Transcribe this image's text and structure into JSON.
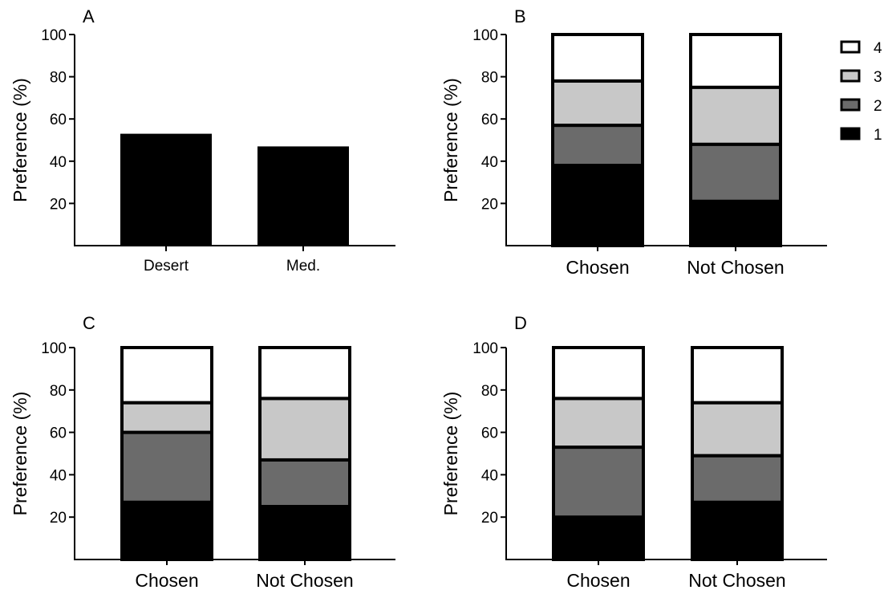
{
  "chart_data": [
    {
      "panel": "A",
      "type": "bar",
      "ylabel": "Preference (%)",
      "ylim": [
        0,
        100
      ],
      "yticks": [
        20,
        40,
        60,
        80,
        100
      ],
      "categories": [
        "Desert",
        "Med."
      ],
      "values": [
        53,
        47
      ],
      "colors": [
        "#000000",
        "#000000"
      ]
    },
    {
      "panel": "B",
      "type": "bar",
      "stacked": true,
      "ylabel": "Preference (%)",
      "ylim": [
        0,
        100
      ],
      "yticks": [
        20,
        40,
        60,
        80,
        100
      ],
      "categories": [
        "Chosen",
        "Not Chosen"
      ],
      "series": [
        {
          "name": "1",
          "values": [
            38,
            21
          ]
        },
        {
          "name": "2",
          "values": [
            19,
            27
          ]
        },
        {
          "name": "3",
          "values": [
            21,
            27
          ]
        },
        {
          "name": "4",
          "values": [
            22,
            25
          ]
        }
      ],
      "legend": "right"
    },
    {
      "panel": "C",
      "type": "bar",
      "stacked": true,
      "ylabel": "Preference (%)",
      "ylim": [
        0,
        100
      ],
      "yticks": [
        20,
        40,
        60,
        80,
        100
      ],
      "categories": [
        "Chosen",
        "Not Chosen"
      ],
      "series": [
        {
          "name": "1",
          "values": [
            27,
            25
          ]
        },
        {
          "name": "2",
          "values": [
            33,
            22
          ]
        },
        {
          "name": "3",
          "values": [
            14,
            29
          ]
        },
        {
          "name": "4",
          "values": [
            26,
            24
          ]
        }
      ]
    },
    {
      "panel": "D",
      "type": "bar",
      "stacked": true,
      "ylabel": "Preference (%)",
      "ylim": [
        0,
        100
      ],
      "yticks": [
        20,
        40,
        60,
        80,
        100
      ],
      "categories": [
        "Chosen",
        "Not Chosen"
      ],
      "series": [
        {
          "name": "1",
          "values": [
            20,
            27
          ]
        },
        {
          "name": "2",
          "values": [
            33,
            22
          ]
        },
        {
          "name": "3",
          "values": [
            23,
            25
          ]
        },
        {
          "name": "4",
          "values": [
            24,
            26
          ]
        }
      ]
    }
  ],
  "legend": {
    "items": [
      {
        "label": "4",
        "color": "#ffffff"
      },
      {
        "label": "3",
        "color": "#c8c8c8"
      },
      {
        "label": "2",
        "color": "#6b6b6b"
      },
      {
        "label": "1",
        "color": "#000000"
      }
    ]
  },
  "series_colors": {
    "1": "#000000",
    "2": "#6b6b6b",
    "3": "#c8c8c8",
    "4": "#ffffff"
  }
}
